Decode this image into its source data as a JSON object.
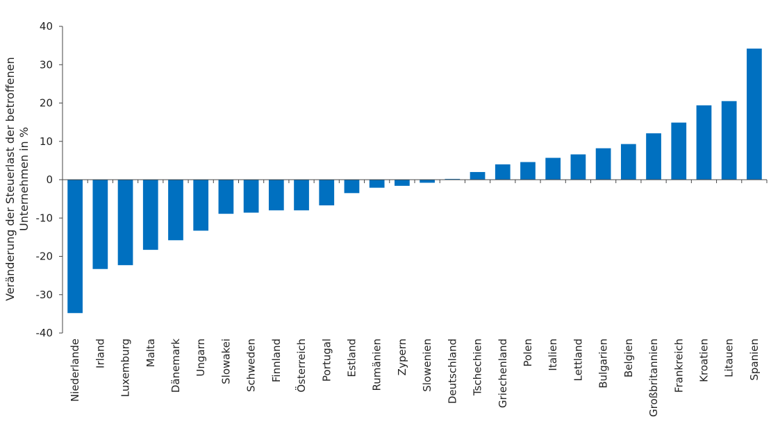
{
  "chart_data": {
    "type": "bar",
    "ylabel": [
      "Veränderung der Steuerlast der betroffenen",
      "Unternehmen in %"
    ],
    "xlabel": "",
    "ylim": [
      -40,
      40
    ],
    "yticks": [
      40,
      30,
      20,
      10,
      0,
      -10,
      -20,
      -30,
      -40
    ],
    "ytick_labels": [
      "40",
      "30",
      "20",
      "10",
      "0",
      "-10",
      "-20",
      "-30",
      "-40"
    ],
    "grid": false,
    "bar_color": "#0070C0",
    "categories": [
      "Niederlande",
      "Irland",
      "Luxemburg",
      "Malta",
      "Dänemark",
      "Ungarn",
      "Slowakei",
      "Schweden",
      "Finnland",
      "Österreich",
      "Portugal",
      "Estland",
      "Rumänien",
      "Zypern",
      "Slowenien",
      "Deutschland",
      "Tschechien",
      "Griechenland",
      "Polen",
      "Italien",
      "Lettland",
      "Bulgarien",
      "Belgien",
      "Großbritannien",
      "Frankreich",
      "Kroatien",
      "Litauen",
      "Spanien"
    ],
    "values": [
      -34.8,
      -23.3,
      -22.3,
      -18.3,
      -15.8,
      -13.3,
      -8.9,
      -8.6,
      -8.0,
      -8.0,
      -6.7,
      -3.5,
      -2.1,
      -1.6,
      -0.8,
      0.2,
      2.0,
      4.0,
      4.6,
      5.7,
      6.6,
      8.2,
      9.3,
      12.1,
      14.9,
      19.4,
      20.5,
      34.2
    ]
  }
}
